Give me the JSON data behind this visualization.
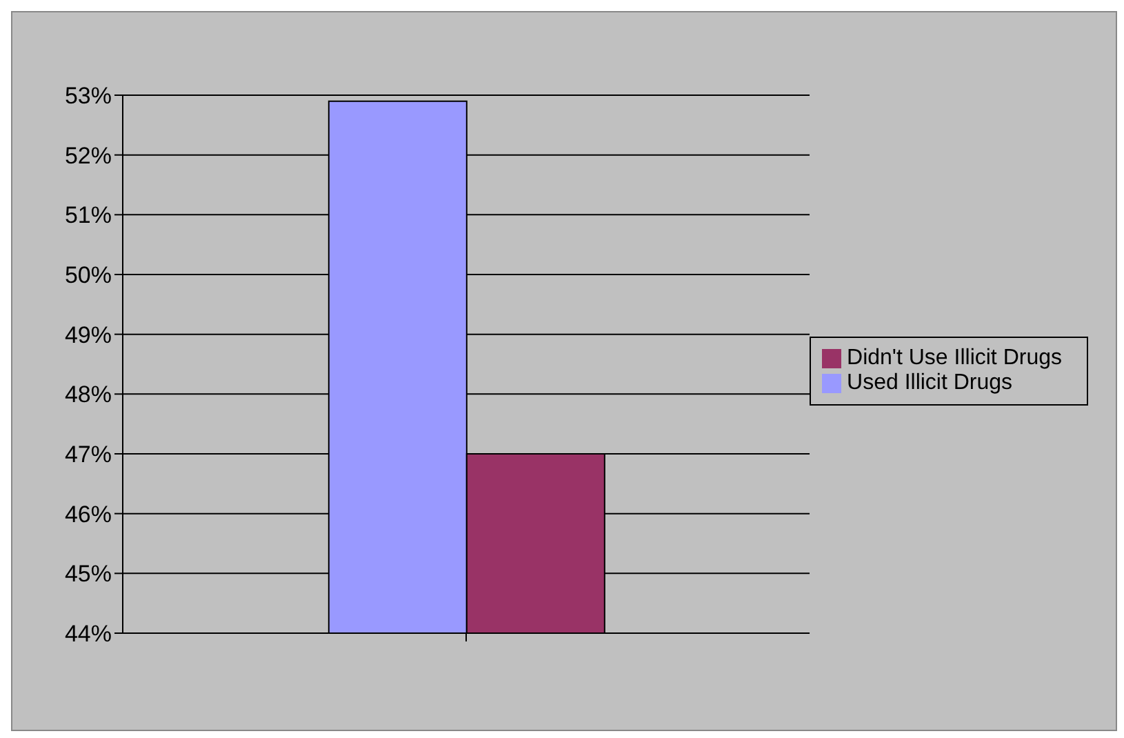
{
  "chart_data": {
    "type": "bar",
    "categories": [
      null
    ],
    "series": [
      {
        "name": "Used Illicit Drugs",
        "color": "#9999ff",
        "values": [
          52.9
        ]
      },
      {
        "name": "Didn't Use Illicit Drugs",
        "color": "#993366",
        "values": [
          47.0
        ]
      }
    ],
    "ylim": [
      44,
      53
    ],
    "yticks": [
      {
        "value": 44,
        "label": "44%"
      },
      {
        "value": 45,
        "label": "45%"
      },
      {
        "value": 46,
        "label": "46%"
      },
      {
        "value": 47,
        "label": "47%"
      },
      {
        "value": 48,
        "label": "48%"
      },
      {
        "value": 49,
        "label": "49%"
      },
      {
        "value": 50,
        "label": "50%"
      },
      {
        "value": 51,
        "label": "51%"
      },
      {
        "value": 52,
        "label": "52%"
      },
      {
        "value": 53,
        "label": "53%"
      }
    ],
    "grid": "y",
    "legend": "right"
  }
}
